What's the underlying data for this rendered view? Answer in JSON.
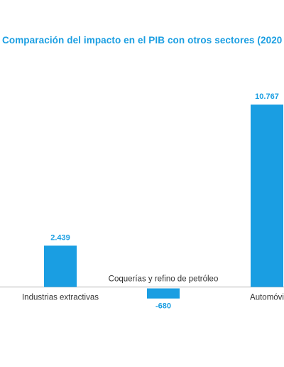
{
  "colors": {
    "accent": "#1a9ee2",
    "title": "#1a9ee2",
    "axis_line": "#b3b3b3",
    "category_text": "#333333"
  },
  "chart_data": {
    "type": "bar",
    "title": "Comparación del impacto en el PIB con otros sectores (2020",
    "categories": [
      "Industrias extractivas",
      "Coquerías y refino de petróleo",
      "Automóvi"
    ],
    "values": [
      2439,
      -680,
      10767
    ],
    "value_labels": [
      "2.439",
      "-680",
      "10.767"
    ],
    "ylim": [
      -680,
      10767
    ],
    "grid": false,
    "legend": "none"
  }
}
